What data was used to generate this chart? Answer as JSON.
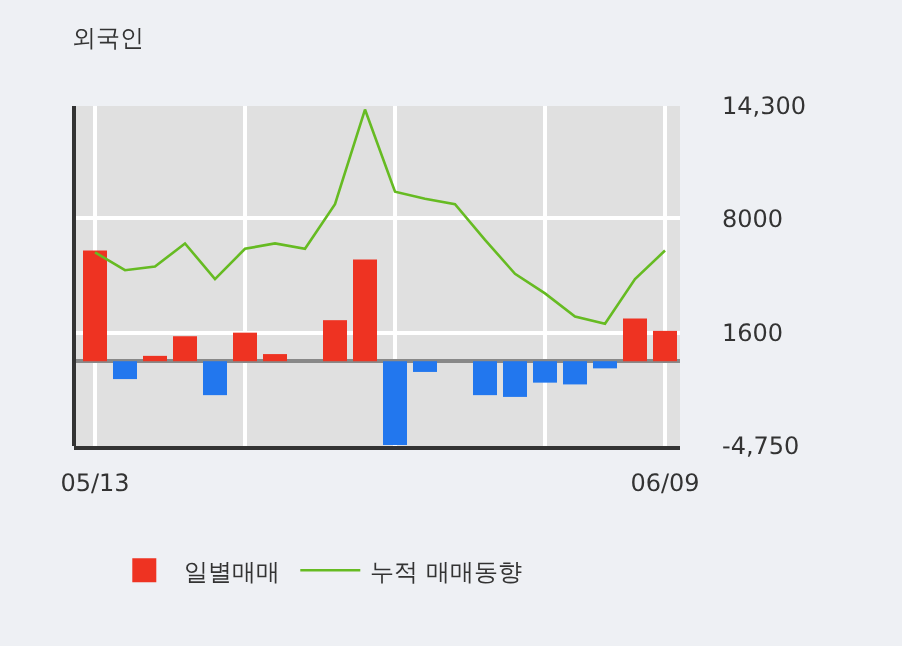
{
  "chart_data": {
    "type": "bar",
    "title": "외국인",
    "categories": [
      "05/13",
      null,
      null,
      null,
      null,
      null,
      null,
      null,
      null,
      null,
      null,
      null,
      null,
      null,
      null,
      null,
      null,
      null,
      null,
      "06/09"
    ],
    "series": [
      {
        "name": "일별매매",
        "colors": [
          "#ee3322",
          "#2277ee",
          "#ee3322",
          "#ee3322",
          "#2277ee",
          "#ee3322",
          "#ee3322",
          "#ee3322",
          "#ee3322",
          "#ee3322",
          "#2277ee",
          "#2277ee",
          "#ee3322",
          "#2277ee",
          "#2277ee",
          "#2277ee",
          "#2277ee",
          "#2277ee",
          "#ee3322",
          "#ee3322"
        ],
        "values": [
          6200,
          -1000,
          300,
          1400,
          -1900,
          1600,
          400,
          0,
          2300,
          5700,
          -4700,
          -600,
          0,
          -1900,
          -2000,
          -1200,
          -1300,
          -400,
          2400,
          1700
        ]
      },
      {
        "name": "누적 매매동향",
        "type": "line",
        "color": "#66bb22",
        "values": [
          6100,
          5100,
          5300,
          6600,
          4600,
          6300,
          6600,
          6300,
          8800,
          14100,
          9500,
          9100,
          8800,
          6800,
          4900,
          3800,
          2500,
          2100,
          4600,
          6200
        ]
      }
    ],
    "ylim": [
      -4750,
      14300
    ],
    "yticks": [
      {
        "value": 14300,
        "label": "14,300"
      },
      8000,
      1600,
      {
        "value": -4750,
        "label": "-4,750"
      }
    ],
    "grid": true,
    "legend": "bottom"
  }
}
